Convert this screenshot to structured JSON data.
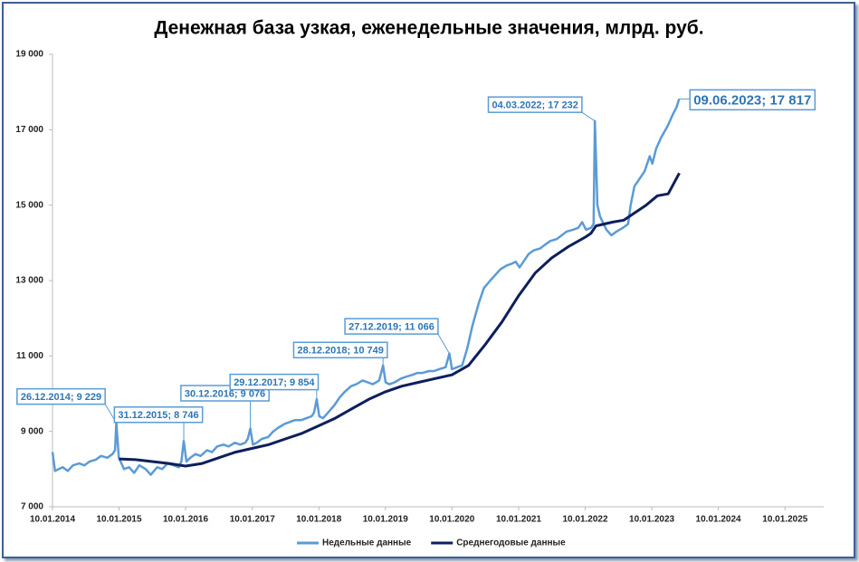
{
  "chart_data": {
    "type": "line",
    "title": "Денежная база узкая, еженедельные значения, млрд. руб.",
    "xlim": [
      "10.01.2014",
      "10.08.2025"
    ],
    "xticks": [
      "10.01.2014",
      "10.01.2015",
      "10.01.2016",
      "10.01.2017",
      "10.01.2018",
      "10.01.2019",
      "10.01.2020",
      "10.01.2021",
      "10.01.2022",
      "10.01.2023",
      "10.01.2024",
      "10.01.2025"
    ],
    "ylim": [
      7000,
      19000
    ],
    "yticks": [
      {
        "value": 7000,
        "label": "7 000"
      },
      {
        "value": 9000,
        "label": "9 000"
      },
      {
        "value": 11000,
        "label": "11 000"
      },
      {
        "value": 13000,
        "label": "13 000"
      },
      {
        "value": 15000,
        "label": "15 000"
      },
      {
        "value": 17000,
        "label": "17 000"
      },
      {
        "value": 19000,
        "label": "19 000"
      }
    ],
    "grid": false,
    "legend": "bottom",
    "series": [
      {
        "name": "Недельные данные",
        "color": "#5b9bd5",
        "x": [
          "10.01.2014",
          "24.01.2014",
          "07.03.2014",
          "04.04.2014",
          "02.05.2014",
          "06.06.2014",
          "04.07.2014",
          "01.08.2014",
          "05.09.2014",
          "03.10.2014",
          "07.11.2014",
          "05.12.2014",
          "19.12.2014",
          "26.12.2014",
          "09.01.2015",
          "06.02.2015",
          "06.03.2015",
          "03.04.2015",
          "01.05.2015",
          "05.06.2015",
          "03.07.2015",
          "07.08.2015",
          "04.09.2015",
          "02.10.2015",
          "06.11.2015",
          "04.12.2015",
          "18.12.2015",
          "31.12.2015",
          "15.01.2016",
          "05.02.2016",
          "04.03.2016",
          "01.04.2016",
          "06.05.2016",
          "03.06.2016",
          "01.07.2016",
          "05.08.2016",
          "02.09.2016",
          "07.10.2016",
          "04.11.2016",
          "02.12.2016",
          "16.12.2016",
          "30.12.2016",
          "13.01.2017",
          "03.02.2017",
          "03.03.2017",
          "07.04.2017",
          "05.05.2017",
          "02.06.2017",
          "07.07.2017",
          "04.08.2017",
          "01.09.2017",
          "06.10.2017",
          "03.11.2017",
          "01.12.2017",
          "15.12.2017",
          "29.12.2017",
          "12.01.2018",
          "02.02.2018",
          "02.03.2018",
          "06.04.2018",
          "04.05.2018",
          "01.06.2018",
          "06.07.2018",
          "03.08.2018",
          "07.09.2018",
          "05.10.2018",
          "02.11.2018",
          "07.12.2018",
          "28.12.2018",
          "11.01.2019",
          "01.02.2019",
          "01.03.2019",
          "05.04.2019",
          "03.05.2019",
          "07.06.2019",
          "05.07.2019",
          "02.08.2019",
          "06.09.2019",
          "04.10.2019",
          "01.11.2019",
          "06.12.2019",
          "27.12.2019",
          "10.01.2020",
          "07.02.2020",
          "06.03.2020",
          "03.04.2020",
          "01.05.2020",
          "05.06.2020",
          "03.07.2020",
          "07.08.2020",
          "04.09.2020",
          "02.10.2020",
          "06.11.2020",
          "04.12.2020",
          "25.12.2020",
          "15.01.2021",
          "05.02.2021",
          "05.03.2021",
          "02.04.2021",
          "07.05.2021",
          "04.06.2021",
          "02.07.2021",
          "06.08.2021",
          "03.09.2021",
          "01.10.2021",
          "05.11.2021",
          "03.12.2021",
          "24.12.2021",
          "14.01.2022",
          "11.02.2022",
          "25.02.2022",
          "04.03.2022",
          "18.03.2022",
          "01.04.2022",
          "06.05.2022",
          "03.06.2022",
          "01.07.2022",
          "05.08.2022",
          "02.09.2022",
          "16.09.2022",
          "07.10.2022",
          "04.11.2022",
          "02.12.2022",
          "30.12.2022",
          "13.01.2023",
          "03.02.2023",
          "03.03.2023",
          "07.04.2023",
          "05.05.2023",
          "26.05.2023",
          "09.06.2023"
        ],
        "values": [
          8450,
          7950,
          8050,
          7950,
          8100,
          8150,
          8100,
          8200,
          8250,
          8350,
          8300,
          8400,
          8500,
          9229,
          8300,
          8000,
          8050,
          7900,
          8100,
          8000,
          7850,
          8050,
          8000,
          8150,
          8100,
          8050,
          8200,
          8746,
          8200,
          8300,
          8400,
          8350,
          8500,
          8450,
          8600,
          8650,
          8600,
          8700,
          8650,
          8700,
          8800,
          9076,
          8650,
          8700,
          8800,
          8850,
          9000,
          9100,
          9200,
          9250,
          9300,
          9300,
          9350,
          9400,
          9500,
          9854,
          9400,
          9350,
          9500,
          9700,
          9900,
          10050,
          10200,
          10250,
          10350,
          10300,
          10250,
          10350,
          10749,
          10300,
          10250,
          10300,
          10400,
          10450,
          10500,
          10550,
          10550,
          10600,
          10600,
          10650,
          10700,
          11066,
          10650,
          10700,
          10750,
          11200,
          11800,
          12400,
          12800,
          13000,
          13150,
          13300,
          13400,
          13450,
          13500,
          13350,
          13500,
          13700,
          13800,
          13850,
          13950,
          14050,
          14100,
          14200,
          14300,
          14350,
          14400,
          14550,
          14350,
          14400,
          14500,
          17232,
          15000,
          14700,
          14350,
          14200,
          14300,
          14400,
          14500,
          15000,
          15500,
          15700,
          15900,
          16300,
          16100,
          16500,
          16800,
          17100,
          17400,
          17600,
          17817
        ]
      },
      {
        "name": "Среднегодовые данные",
        "color": "#0d1f5c",
        "x": [
          "10.01.2015",
          "10.04.2015",
          "10.07.2015",
          "10.10.2015",
          "10.01.2016",
          "10.04.2016",
          "10.07.2016",
          "10.10.2016",
          "10.01.2017",
          "10.04.2017",
          "10.07.2017",
          "10.10.2017",
          "10.01.2018",
          "10.04.2018",
          "10.07.2018",
          "10.10.2018",
          "10.01.2019",
          "10.04.2019",
          "10.07.2019",
          "10.10.2019",
          "10.01.2020",
          "10.04.2020",
          "10.07.2020",
          "10.10.2020",
          "10.01.2021",
          "10.04.2021",
          "10.07.2021",
          "10.10.2021",
          "10.01.2022",
          "10.02.2022",
          "10.03.2022",
          "10.06.2022",
          "10.08.2022",
          "10.10.2022",
          "10.12.2022",
          "10.02.2023",
          "10.04.2023",
          "10.06.2023"
        ],
        "values": [
          8270,
          8250,
          8200,
          8150,
          8080,
          8150,
          8300,
          8450,
          8550,
          8650,
          8800,
          8950,
          9150,
          9350,
          9600,
          9850,
          10050,
          10200,
          10300,
          10400,
          10500,
          10750,
          11300,
          11900,
          12600,
          13200,
          13600,
          13900,
          14150,
          14250,
          14450,
          14550,
          14600,
          14800,
          15000,
          15250,
          15300,
          15850
        ]
      }
    ],
    "annotations": [
      {
        "x": "26.12.2014",
        "y": 9229,
        "label": "26.12.2014; 9 229"
      },
      {
        "x": "31.12.2015",
        "y": 8746,
        "label": "31.12.2015; 8 746"
      },
      {
        "x": "30.12.2016",
        "y": 9076,
        "label": "30.12.2016; 9 076"
      },
      {
        "x": "29.12.2017",
        "y": 9854,
        "label": "29.12.2017; 9 854"
      },
      {
        "x": "28.12.2018",
        "y": 10749,
        "label": "28.12.2018; 10 749"
      },
      {
        "x": "27.12.2019",
        "y": 11066,
        "label": "27.12.2019; 11 066"
      },
      {
        "x": "04.03.2022",
        "y": 17232,
        "label": "04.03.2022; 17 232"
      },
      {
        "x": "09.06.2023",
        "y": 17817,
        "label": "09.06.2023; 17 817"
      }
    ]
  }
}
